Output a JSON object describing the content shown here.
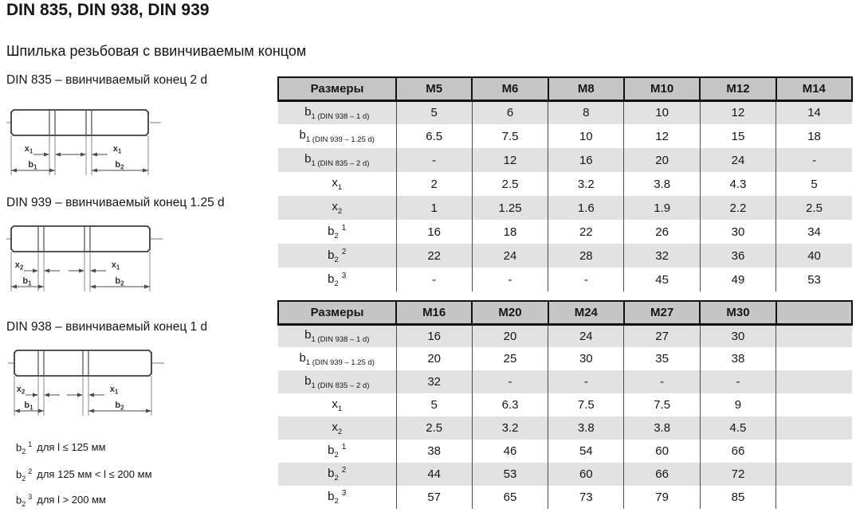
{
  "page": {
    "title": "DIN 835, DIN 938, DIN 939",
    "subtitle": "Шпилька резьбовая с ввинчиваемым концом"
  },
  "colors": {
    "table_header_bg": "#c6c6c6",
    "table_alt_row_bg": "#e2e2e2",
    "table_border": "#121212",
    "column_line": "#4d4d4d",
    "drawing_line": "#4a4a4a",
    "text": "#161616"
  },
  "drawings": [
    {
      "caption": "DIN 835 – ввинчиваемый конец 2 d",
      "dim_left_x": {
        "base": "x",
        "sub": "1"
      },
      "dim_right_x": {
        "base": "x",
        "sub": "1"
      },
      "dim_left_b": {
        "base": "b",
        "sub": "1"
      },
      "dim_right_b": {
        "base": "b",
        "sub": "2"
      }
    },
    {
      "caption": "DIN 939 – ввинчиваемый конец 1.25 d",
      "dim_left_x": {
        "base": "x",
        "sub": "2"
      },
      "dim_right_x": {
        "base": "x",
        "sub": "1"
      },
      "dim_left_b": {
        "base": "b",
        "sub": "1"
      },
      "dim_right_b": {
        "base": "b",
        "sub": "2"
      }
    },
    {
      "caption": "DIN 938 – ввинчиваемый конец 1 d",
      "dim_left_x": {
        "base": "x",
        "sub": "2"
      },
      "dim_right_x": {
        "base": "x",
        "sub": "1"
      },
      "dim_left_b": {
        "base": "b",
        "sub": "1"
      },
      "dim_right_b": {
        "base": "b",
        "sub": "2"
      }
    }
  ],
  "footnotes": [
    {
      "base": "b",
      "sub": "2",
      "sup": "1",
      "text": "для l ≤ 125 мм"
    },
    {
      "base": "b",
      "sub": "2",
      "sup": "2",
      "text": "для 125 мм < l ≤ 200 мм"
    },
    {
      "base": "b",
      "sub": "2",
      "sup": "3",
      "text": "для l > 200 мм"
    }
  ],
  "tables": [
    {
      "header_label": "Размеры",
      "columns": [
        "M5",
        "M6",
        "M8",
        "M10",
        "M12",
        "M14"
      ],
      "rows": [
        {
          "label": {
            "base": "b",
            "sub": "1 (DIN 938 – 1 d)",
            "sup": ""
          },
          "values": [
            "5",
            "6",
            "8",
            "10",
            "12",
            "14"
          ]
        },
        {
          "label": {
            "base": "b",
            "sub": "1 (DIN 939 – 1.25 d)",
            "sup": ""
          },
          "values": [
            "6.5",
            "7.5",
            "10",
            "12",
            "15",
            "18"
          ]
        },
        {
          "label": {
            "base": "b",
            "sub": "1 (DIN 835 – 2 d)",
            "sup": ""
          },
          "values": [
            "-",
            "12",
            "16",
            "20",
            "24",
            "-"
          ]
        },
        {
          "label": {
            "base": "x",
            "sub": "1",
            "sup": ""
          },
          "values": [
            "2",
            "2.5",
            "3.2",
            "3.8",
            "4.3",
            "5"
          ]
        },
        {
          "label": {
            "base": "x",
            "sub": "2",
            "sup": ""
          },
          "values": [
            "1",
            "1.25",
            "1.6",
            "1.9",
            "2.2",
            "2.5"
          ]
        },
        {
          "label": {
            "base": "b",
            "sub": "2",
            "sup": "1"
          },
          "values": [
            "16",
            "18",
            "22",
            "26",
            "30",
            "34"
          ]
        },
        {
          "label": {
            "base": "b",
            "sub": "2",
            "sup": "2"
          },
          "values": [
            "22",
            "24",
            "28",
            "32",
            "36",
            "40"
          ]
        },
        {
          "label": {
            "base": "b",
            "sub": "2",
            "sup": "3"
          },
          "values": [
            "-",
            "-",
            "-",
            "45",
            "49",
            "53"
          ]
        }
      ]
    },
    {
      "header_label": "Размеры",
      "columns": [
        "M16",
        "M20",
        "M24",
        "M27",
        "M30",
        ""
      ],
      "rows": [
        {
          "label": {
            "base": "b",
            "sub": "1 (DIN 938 – 1 d)",
            "sup": ""
          },
          "values": [
            "16",
            "20",
            "24",
            "27",
            "30",
            ""
          ]
        },
        {
          "label": {
            "base": "b",
            "sub": "1 (DIN 939 – 1.25 d)",
            "sup": ""
          },
          "values": [
            "20",
            "25",
            "30",
            "35",
            "38",
            ""
          ]
        },
        {
          "label": {
            "base": "b",
            "sub": "1 (DIN 835 – 2 d)",
            "sup": ""
          },
          "values": [
            "32",
            "-",
            "-",
            "-",
            "-",
            ""
          ]
        },
        {
          "label": {
            "base": "x",
            "sub": "1",
            "sup": ""
          },
          "values": [
            "5",
            "6.3",
            "7.5",
            "7.5",
            "9",
            ""
          ]
        },
        {
          "label": {
            "base": "x",
            "sub": "2",
            "sup": ""
          },
          "values": [
            "2.5",
            "3.2",
            "3.8",
            "3.8",
            "4.5",
            ""
          ]
        },
        {
          "label": {
            "base": "b",
            "sub": "2",
            "sup": "1"
          },
          "values": [
            "38",
            "46",
            "54",
            "60",
            "66",
            ""
          ]
        },
        {
          "label": {
            "base": "b",
            "sub": "2",
            "sup": "2"
          },
          "values": [
            "44",
            "53",
            "60",
            "66",
            "72",
            ""
          ]
        },
        {
          "label": {
            "base": "b",
            "sub": "2",
            "sup": "3"
          },
          "values": [
            "57",
            "65",
            "73",
            "79",
            "85",
            ""
          ]
        }
      ]
    }
  ]
}
